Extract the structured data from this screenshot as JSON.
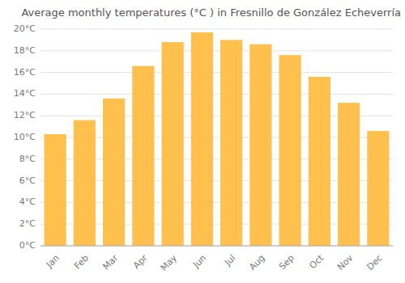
{
  "chart_data": {
    "type": "bar",
    "title": "Average monthly temperatures (°C ) in Fresnillo de González Echeverría",
    "categories": [
      "Jan",
      "Feb",
      "Mar",
      "Apr",
      "May",
      "Jun",
      "Jul",
      "Aug",
      "Sep",
      "Oct",
      "Nov",
      "Dec"
    ],
    "values": [
      10.3,
      11.6,
      13.6,
      16.6,
      18.8,
      19.7,
      19.0,
      18.6,
      17.6,
      15.6,
      13.2,
      10.6
    ],
    "color": "#FFC04D",
    "ylim": [
      0,
      20
    ],
    "yticks": [
      {
        "value": 0,
        "label": "0°C"
      },
      {
        "value": 2,
        "label": "2°C"
      },
      {
        "value": 4,
        "label": "4°C"
      },
      {
        "value": 6,
        "label": "6°C"
      },
      {
        "value": 8,
        "label": "8°C"
      },
      {
        "value": 10,
        "label": "10°C"
      },
      {
        "value": 12,
        "label": "12°C"
      },
      {
        "value": 14,
        "label": "14°C"
      },
      {
        "value": 16,
        "label": "16°C"
      },
      {
        "value": 18,
        "label": "18°C"
      },
      {
        "value": 20,
        "label": "20°C"
      }
    ],
    "grid": true
  }
}
